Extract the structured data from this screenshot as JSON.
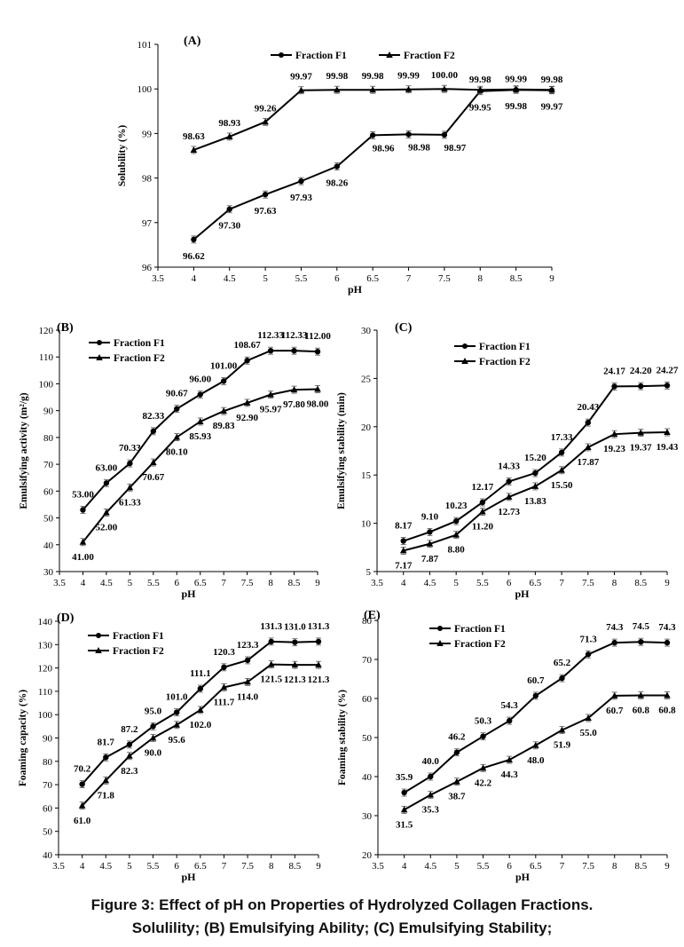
{
  "caption": {
    "line1": "Figure 3: Effect of pH on Properties of Hydrolyzed Collagen Fractions.",
    "line2": "Solulility; (B) Emulsifying Ability; (C) Emulsifying Stability;"
  },
  "chart_data": [
    {
      "type": "line",
      "panel": "(A)",
      "xlabel": "pH",
      "ylabel": "Solubility (%)",
      "xlim": [
        3.5,
        9
      ],
      "ylim": [
        96,
        101
      ],
      "xticks": [
        "3.5",
        "4",
        "4.5",
        "5",
        "5.5",
        "6",
        "6.5",
        "7",
        "7.5",
        "8",
        "8.5",
        "9"
      ],
      "yticks": [
        "96",
        "97",
        "98",
        "99",
        "100",
        "101"
      ],
      "legend": "top-center-horizontal",
      "x": [
        4,
        4.5,
        5,
        5.5,
        6,
        6.5,
        7,
        7.5,
        8,
        8.5,
        9
      ],
      "series": [
        {
          "name": "Fraction F1",
          "marker": "circle",
          "values": [
            96.62,
            97.3,
            97.63,
            97.93,
            98.26,
            98.96,
            98.98,
            98.97,
            99.95,
            99.98,
            99.97
          ],
          "labels": [
            "96.62",
            "97.30",
            "97.63",
            "97.93",
            "98.26",
            "98.96",
            "98.98",
            "98.97",
            "99.95",
            "99.98",
            "99.97"
          ]
        },
        {
          "name": "Fraction F2",
          "marker": "triangle",
          "values": [
            98.63,
            98.93,
            99.26,
            99.97,
            99.98,
            99.98,
            99.99,
            100.0,
            99.98,
            99.99,
            99.98
          ],
          "labels": [
            "98.63",
            "98.93",
            "99.26",
            "99.97",
            "99.98",
            "99.98",
            "99.99",
            "100.00",
            "99.98",
            "99.99",
            "99.98"
          ]
        }
      ]
    },
    {
      "type": "line",
      "panel": "(B)",
      "xlabel": "pH",
      "ylabel": "Emulsifying activity (m²/g)",
      "xlim": [
        3.5,
        9
      ],
      "ylim": [
        30,
        120
      ],
      "xticks": [
        "3.5",
        "4",
        "4.5",
        "5",
        "5.5",
        "6",
        "6.5",
        "7",
        "7.5",
        "8",
        "8.5",
        "9"
      ],
      "yticks": [
        "30",
        "40",
        "50",
        "60",
        "70",
        "80",
        "90",
        "100",
        "110",
        "120"
      ],
      "legend": "top-left",
      "x": [
        4,
        4.5,
        5,
        5.5,
        6,
        6.5,
        7,
        7.5,
        8,
        8.5,
        9
      ],
      "series": [
        {
          "name": "Fraction F1",
          "marker": "circle",
          "values": [
            53.0,
            63.0,
            70.33,
            82.33,
            90.67,
            96.0,
            101.0,
            108.67,
            112.33,
            112.33,
            112.0
          ],
          "labels": [
            "53.00",
            "63.00",
            "70.33",
            "82.33",
            "90.67",
            "96.00",
            "101.00",
            "108.67",
            "112.33",
            "112.33",
            "112.00"
          ]
        },
        {
          "name": "Fraction F2",
          "marker": "triangle",
          "values": [
            41.0,
            52.0,
            61.33,
            70.67,
            80.1,
            85.93,
            89.83,
            92.9,
            95.97,
            97.8,
            98.0
          ],
          "labels": [
            "41.00",
            "52.00",
            "61.33",
            "70.67",
            "80.10",
            "85.93",
            "89.83",
            "92.90",
            "95.97",
            "97.80",
            "98.00"
          ]
        }
      ]
    },
    {
      "type": "line",
      "panel": "(C)",
      "xlabel": "pH",
      "ylabel": "Emulsifying stability (min)",
      "xlim": [
        3.5,
        9
      ],
      "ylim": [
        5,
        30
      ],
      "xticks": [
        "3.5",
        "4",
        "4.5",
        "5",
        "5.5",
        "6",
        "6.5",
        "7",
        "7.5",
        "8",
        "8.5",
        "9"
      ],
      "yticks": [
        "5",
        "10",
        "15",
        "20",
        "25",
        "30"
      ],
      "legend": "top-left",
      "x": [
        4,
        4.5,
        5,
        5.5,
        6,
        6.5,
        7,
        7.5,
        8,
        8.5,
        9
      ],
      "series": [
        {
          "name": "Fraction F1",
          "marker": "circle",
          "values": [
            8.17,
            9.1,
            10.23,
            12.17,
            14.33,
            15.2,
            17.33,
            20.43,
            24.17,
            24.2,
            24.27
          ],
          "labels": [
            "8.17",
            "9.10",
            "10.23",
            "12.17",
            "14.33",
            "15.20",
            "17.33",
            "20.43",
            "24.17",
            "24.20",
            "24.27"
          ]
        },
        {
          "name": "Fraction F2",
          "marker": "triangle",
          "values": [
            7.17,
            7.87,
            8.8,
            11.2,
            12.73,
            13.83,
            15.5,
            17.87,
            19.23,
            19.37,
            19.43
          ],
          "labels": [
            "7.17",
            "7.87",
            "8.80",
            "11.20",
            "12.73",
            "13.83",
            "15.50",
            "17.87",
            "19.23",
            "19.37",
            "19.43"
          ]
        }
      ]
    },
    {
      "type": "line",
      "panel": "(D)",
      "xlabel": "pH",
      "ylabel": "Foaming capacity (%)",
      "xlim": [
        3.5,
        9
      ],
      "ylim": [
        40,
        140
      ],
      "xticks": [
        "3.5",
        "4",
        "4.5",
        "5",
        "5.5",
        "6",
        "6.5",
        "7",
        "7.5",
        "8",
        "8.5",
        "9"
      ],
      "yticks": [
        "40",
        "50",
        "60",
        "70",
        "80",
        "90",
        "100",
        "110",
        "120",
        "130",
        "140"
      ],
      "legend": "top-left",
      "x": [
        4,
        4.5,
        5,
        5.5,
        6,
        6.5,
        7,
        7.5,
        8,
        8.5,
        9
      ],
      "series": [
        {
          "name": "Fraction F1",
          "marker": "circle",
          "values": [
            70.2,
            81.7,
            87.2,
            95.0,
            101.0,
            111.1,
            120.3,
            123.3,
            131.3,
            131.0,
            131.3
          ],
          "labels": [
            "70.2",
            "81.7",
            "87.2",
            "95.0",
            "101.0",
            "111.1",
            "120.3",
            "123.3",
            "131.3",
            "131.0",
            "131.3"
          ]
        },
        {
          "name": "Fraction F2",
          "marker": "triangle",
          "values": [
            61.0,
            71.8,
            82.3,
            90.0,
            95.6,
            102.0,
            111.7,
            114.0,
            121.5,
            121.3,
            121.3
          ],
          "labels": [
            "61.0",
            "71.8",
            "82.3",
            "90.0",
            "95.6",
            "102.0",
            "111.7",
            "114.0",
            "121.5",
            "121.3",
            "121.3"
          ]
        }
      ]
    },
    {
      "type": "line",
      "panel": "(E)",
      "xlabel": "pH",
      "ylabel": "Foaming stability (%)",
      "xlim": [
        3.5,
        9
      ],
      "ylim": [
        20,
        80
      ],
      "xticks": [
        "3.5",
        "4",
        "4.5",
        "5",
        "5.5",
        "6",
        "6.5",
        "7",
        "7.5",
        "8",
        "8.5",
        "9"
      ],
      "yticks": [
        "20",
        "30",
        "40",
        "50",
        "60",
        "70",
        "80"
      ],
      "legend": "top-left",
      "x": [
        4,
        4.5,
        5,
        5.5,
        6,
        6.5,
        7,
        7.5,
        8,
        8.5,
        9
      ],
      "series": [
        {
          "name": "Fraction F1",
          "marker": "circle",
          "values": [
            35.9,
            40.0,
            46.2,
            50.3,
            54.3,
            60.7,
            65.2,
            71.3,
            74.3,
            74.5,
            74.3
          ],
          "labels": [
            "35.9",
            "40.0",
            "46.2",
            "50.3",
            "54.3",
            "60.7",
            "65.2",
            "71.3",
            "74.3",
            "74.5",
            "74.3"
          ]
        },
        {
          "name": "Fraction F2",
          "marker": "triangle",
          "values": [
            31.5,
            35.3,
            38.7,
            42.2,
            44.3,
            48.0,
            51.9,
            55.0,
            60.7,
            60.8,
            60.8
          ],
          "labels": [
            "31.5",
            "35.3",
            "38.7",
            "42.2",
            "44.3",
            "48.0",
            "51.9",
            "55.0",
            "60.7",
            "60.8",
            "60.8"
          ]
        }
      ]
    }
  ]
}
